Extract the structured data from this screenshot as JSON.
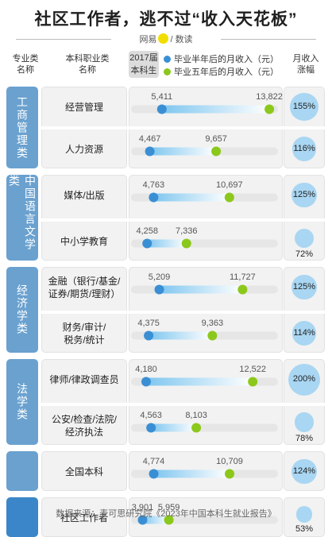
{
  "title": "社区工作者，逃不过“收入天花板”",
  "brand": {
    "part1": "网易",
    "part2": "数读"
  },
  "header": {
    "col1": [
      "专业类",
      "名称"
    ],
    "col2": [
      "本科职业类",
      "名称"
    ],
    "badge": [
      "2017届",
      "本科生"
    ],
    "legend_half": "毕业半年后的月收入（元）",
    "legend_five": "毕业五年后的月收入（元）",
    "col4": [
      "月收入",
      "涨幅"
    ]
  },
  "colors": {
    "half": "#3a8fd4",
    "five": "#8cc81c",
    "track": "#e6e6e6",
    "bubble": "#a9d6f2",
    "category": "#6aa1cf",
    "category_dark": "#3a86c8"
  },
  "categories": [
    {
      "name": "工商管理类"
    },
    {
      "name": "中国语言文学类"
    },
    {
      "name": "经济学类"
    },
    {
      "name": "法学类"
    },
    {
      "name": ""
    },
    {
      "name": ""
    }
  ],
  "chart_data": {
    "type": "dumbbell",
    "title": "社区工作者，逃不过“收入天花板”",
    "series": [
      {
        "name": "毕业半年后的月收入（元）"
      },
      {
        "name": "毕业五年后的月收入（元）"
      },
      {
        "name": "月收入涨幅"
      }
    ],
    "rows": [
      {
        "category": "工商管理类",
        "label": [
          "经营管理"
        ],
        "half": 5411,
        "half_label": "5,411",
        "five": 13822,
        "five_label": "13,822",
        "growth": 155,
        "growth_label": "155%"
      },
      {
        "category": "工商管理类",
        "label": [
          "人力资源"
        ],
        "half": 4467,
        "half_label": "4,467",
        "five": 9657,
        "five_label": "9,657",
        "growth": 116,
        "growth_label": "116%"
      },
      {
        "category": "中国语言文学类",
        "label": [
          "媒体/出版"
        ],
        "half": 4763,
        "half_label": "4,763",
        "five": 10697,
        "five_label": "10,697",
        "growth": 125,
        "growth_label": "125%"
      },
      {
        "category": "中国语言文学类",
        "label": [
          "中小学教育"
        ],
        "half": 4258,
        "half_label": "4,258",
        "five": 7336,
        "five_label": "7,336",
        "growth": 72,
        "growth_label": "72%"
      },
      {
        "category": "经济学类",
        "label": [
          "金融（银行/基金/",
          "证券/期货/理财）"
        ],
        "half": 5209,
        "half_label": "5,209",
        "five": 11727,
        "five_label": "11,727",
        "growth": 125,
        "growth_label": "125%"
      },
      {
        "category": "经济学类",
        "label": [
          "财务/审计/",
          "税务/统计"
        ],
        "half": 4375,
        "half_label": "4,375",
        "five": 9363,
        "five_label": "9,363",
        "growth": 114,
        "growth_label": "114%"
      },
      {
        "category": "法学类",
        "label": [
          "律师/律政调查员"
        ],
        "half": 4180,
        "half_label": "4,180",
        "five": 12522,
        "five_label": "12,522",
        "growth": 200,
        "growth_label": "200%"
      },
      {
        "category": "法学类",
        "label": [
          "公安/检查/法院/",
          "经济执法"
        ],
        "half": 4563,
        "half_label": "4,563",
        "five": 8103,
        "five_label": "8,103",
        "growth": 78,
        "growth_label": "78%"
      },
      {
        "category": "",
        "label": [
          "全国本科"
        ],
        "half": 4774,
        "half_label": "4,774",
        "five": 10709,
        "five_label": "10,709",
        "growth": 124,
        "growth_label": "124%"
      },
      {
        "category": "",
        "label": [
          "社区工作者"
        ],
        "half": 3901,
        "half_label": "3,901",
        "five": 5959,
        "five_label": "5,959",
        "growth": 53,
        "growth_label": "53%"
      }
    ]
  },
  "source": "数据来源：麦可思研究院《2023年中国本科生就业报告》"
}
